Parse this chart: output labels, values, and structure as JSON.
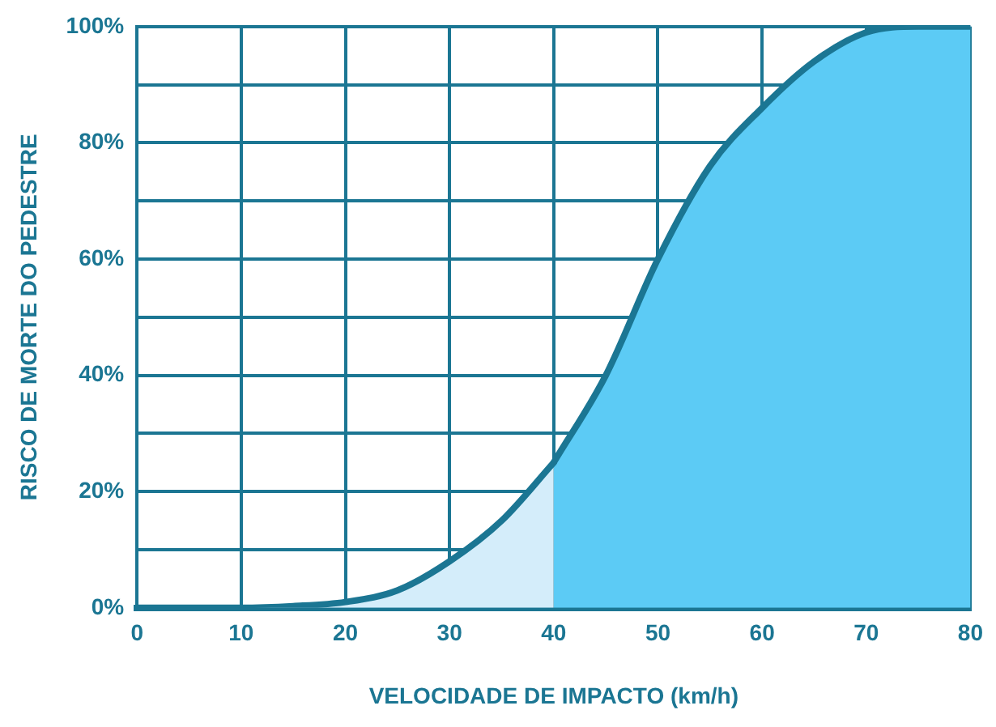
{
  "chart_data": {
    "type": "area",
    "xlabel": "VELOCIDADE DE IMPACTO (km/h)",
    "ylabel": "RISCO DE MORTE DO PEDESTRE",
    "series": [
      {
        "color": "#d4edfa",
        "x": [
          0,
          5,
          10,
          15,
          20,
          25,
          30,
          35,
          40
        ],
        "values": [
          0,
          0,
          0,
          0.3,
          1,
          3,
          8,
          15,
          25
        ]
      },
      {
        "color": "#5ccbf5",
        "x": [
          40,
          45,
          50,
          55,
          60,
          65,
          70,
          75,
          80
        ],
        "values": [
          25,
          40,
          60,
          76,
          86,
          94,
          99,
          100,
          100
        ]
      }
    ],
    "xlim": [
      0,
      80
    ],
    "xticks": [
      0,
      10,
      20,
      30,
      40,
      50,
      60,
      70,
      80
    ],
    "ylim": [
      0,
      100
    ],
    "yticks": [
      {
        "value": 0,
        "label": "0%"
      },
      {
        "value": 10,
        "label": null
      },
      {
        "value": 20,
        "label": "20%"
      },
      {
        "value": 30,
        "label": null
      },
      {
        "value": 40,
        "label": "40%"
      },
      {
        "value": 50,
        "label": null
      },
      {
        "value": 60,
        "label": "60%"
      },
      {
        "value": 70,
        "label": null
      },
      {
        "value": 80,
        "label": "80%"
      },
      {
        "value": 90,
        "label": null
      },
      {
        "value": 100,
        "label": "100%"
      }
    ],
    "grid": true
  }
}
